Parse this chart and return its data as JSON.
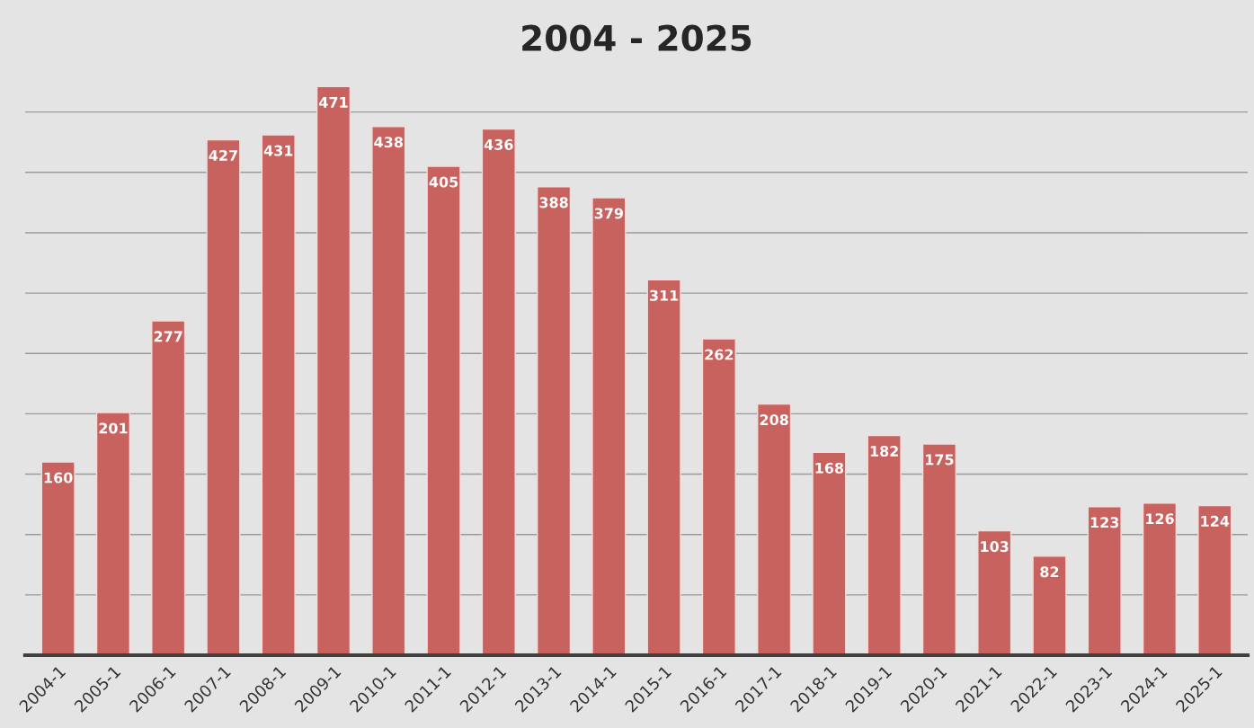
{
  "chart_data": {
    "type": "bar",
    "title": "2004 - 2025",
    "categories": [
      "2004-1",
      "2005-1",
      "2006-1",
      "2007-1",
      "2008-1",
      "2009-1",
      "2010-1",
      "2011-1",
      "2012-1",
      "2013-1",
      "2014-1",
      "2015-1",
      "2016-1",
      "2017-1",
      "2018-1",
      "2019-1",
      "2020-1",
      "2021-1",
      "2022-1",
      "2023-1",
      "2024-1",
      "2025-1"
    ],
    "values": [
      160,
      201,
      277,
      427,
      431,
      471,
      438,
      405,
      436,
      388,
      379,
      311,
      262,
      208,
      168,
      182,
      175,
      103,
      82,
      123,
      126,
      124
    ],
    "color": "#c8625e",
    "data_labels": true,
    "yticks": [
      {
        "value": 0,
        "label": null
      },
      {
        "value": 50,
        "label": null
      },
      {
        "value": 100,
        "label": null
      },
      {
        "value": 150,
        "label": null
      },
      {
        "value": 200,
        "label": null
      },
      {
        "value": 250,
        "label": null
      },
      {
        "value": 300,
        "label": null
      },
      {
        "value": 350,
        "label": null
      },
      {
        "value": 400,
        "label": null
      },
      {
        "value": 450,
        "label": null
      }
    ],
    "grid": "y",
    "tick_labels": "x"
  }
}
